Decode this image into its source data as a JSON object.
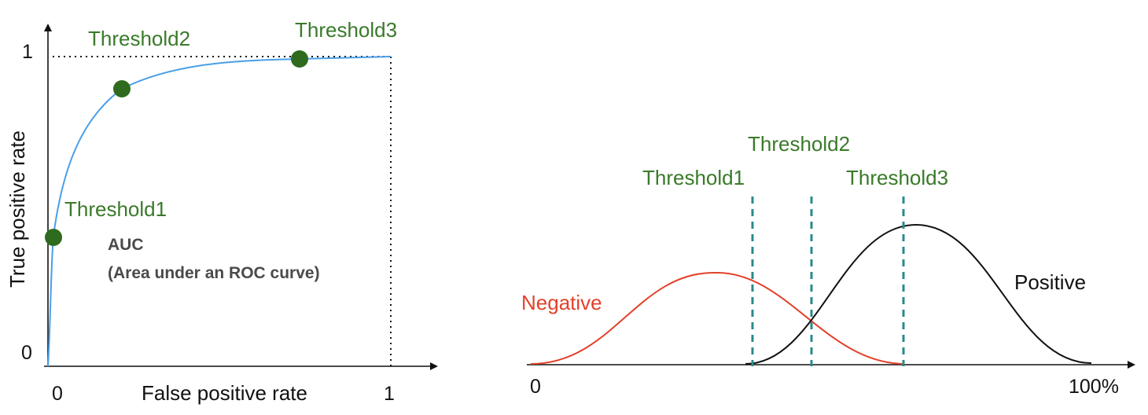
{
  "roc": {
    "y_axis_label": "True positive rate",
    "x_axis_label": "False positive rate",
    "y_tick_top": "1",
    "y_tick_bottom": "0",
    "x_tick_left": "0",
    "x_tick_right": "1",
    "auc_title": "AUC",
    "auc_desc": "(Area under an ROC curve)",
    "threshold_labels": [
      "Threshold1",
      "Threshold2",
      "Threshold3"
    ],
    "colors": {
      "curve": "#4a9ee8",
      "point": "#2e6b1f"
    }
  },
  "distribution": {
    "negative_label": "Negative",
    "positive_label": "Positive",
    "x_tick_left": "0",
    "x_tick_right": "100%",
    "threshold_labels": [
      "Threshold1",
      "Threshold2",
      "Threshold3"
    ],
    "colors": {
      "negative": "#e2412a",
      "positive": "#111111",
      "threshold_line": "#2a8a8a"
    }
  }
}
